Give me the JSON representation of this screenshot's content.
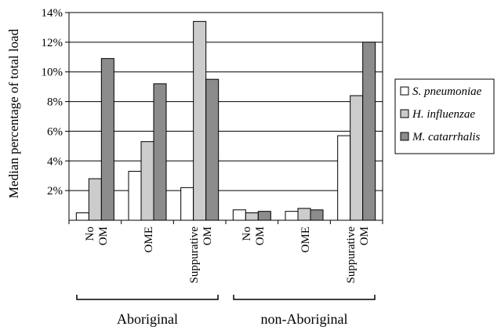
{
  "chart_data": {
    "type": "bar",
    "title": "",
    "xlabel": "",
    "ylabel": "Median percentage of total load",
    "ylim": [
      0,
      14
    ],
    "yticks": [
      "2%",
      "4%",
      "6%",
      "8%",
      "10%",
      "12%",
      "14%"
    ],
    "grid": "horizontal",
    "legend_position": "right",
    "groups": [
      {
        "label": "Aboriginal",
        "categories": [
          "No OM",
          "OME",
          "Suppurative OM"
        ]
      },
      {
        "label": "non-Aboriginal",
        "categories": [
          "No OM",
          "OME",
          "Suppurative OM"
        ]
      }
    ],
    "categories": [
      "No OM",
      "OME",
      "Suppurative OM",
      "No OM",
      "OME",
      "Suppurative OM"
    ],
    "series": [
      {
        "name": "S. pneumoniae",
        "color": "#ffffff",
        "values": [
          0.5,
          3.3,
          2.2,
          0.7,
          0.6,
          5.7
        ]
      },
      {
        "name": "H. influenzae",
        "color": "#cccccc",
        "values": [
          2.8,
          5.3,
          13.4,
          0.5,
          0.8,
          8.4
        ]
      },
      {
        "name": "M. catarrhalis",
        "color": "#8c8c8c",
        "values": [
          10.9,
          9.2,
          9.5,
          0.6,
          0.7,
          12.0
        ]
      }
    ]
  }
}
